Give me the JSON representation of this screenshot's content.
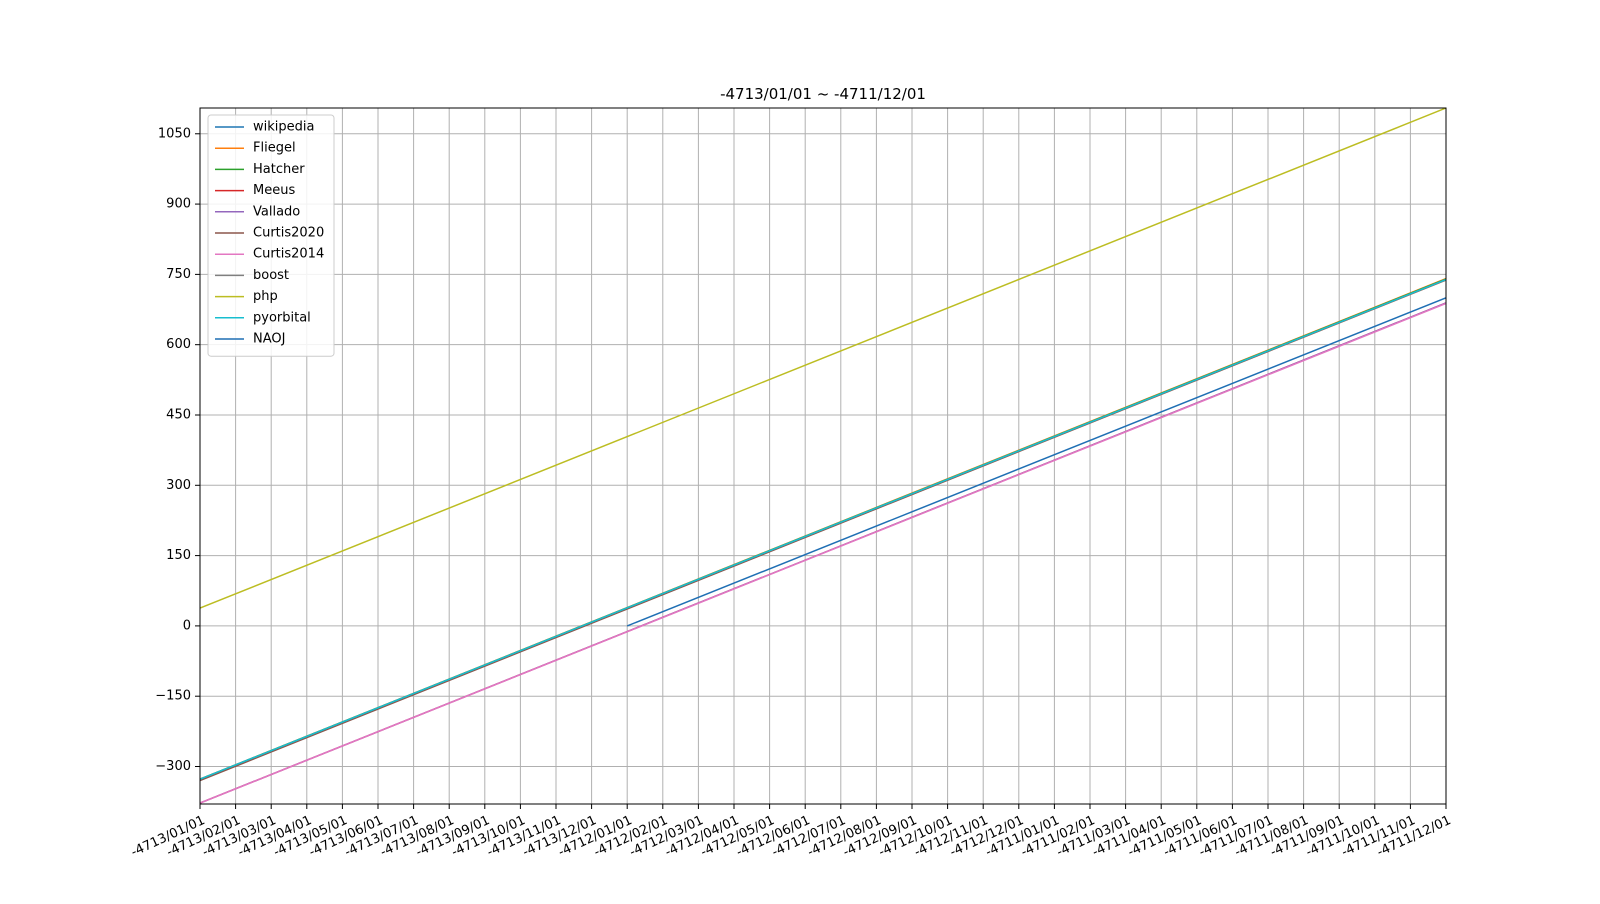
{
  "chart_data": {
    "type": "line",
    "title": "-4713/01/01 ~ -4711/12/01",
    "xlabel": "",
    "ylabel": "",
    "x_ticks": [
      "-4713/01/01",
      "-4713/02/01",
      "-4713/03/01",
      "-4713/04/01",
      "-4713/05/01",
      "-4713/06/01",
      "-4713/07/01",
      "-4713/08/01",
      "-4713/09/01",
      "-4713/10/01",
      "-4713/11/01",
      "-4713/12/01",
      "-4712/01/01",
      "-4712/02/01",
      "-4712/03/01",
      "-4712/04/01",
      "-4712/05/01",
      "-4712/06/01",
      "-4712/07/01",
      "-4712/08/01",
      "-4712/09/01",
      "-4712/10/01",
      "-4712/11/01",
      "-4712/12/01",
      "-4711/01/01",
      "-4711/02/01",
      "-4711/03/01",
      "-4711/04/01",
      "-4711/05/01",
      "-4711/06/01",
      "-4711/07/01",
      "-4711/08/01",
      "-4711/09/01",
      "-4711/10/01",
      "-4711/11/01",
      "-4711/12/01"
    ],
    "y_ticks": [
      "−300",
      "−150",
      "0",
      "150",
      "300",
      "450",
      "600",
      "750",
      "900",
      "1050"
    ],
    "y_tick_values": [
      -300,
      -150,
      0,
      150,
      300,
      450,
      600,
      750,
      900,
      1050
    ],
    "ylim": [
      -380,
      1105
    ],
    "grid": true,
    "legend_position": "upper-left",
    "series": [
      {
        "name": "wikipedia",
        "color": "#1f77b4",
        "x": [
          "-4713/01/01",
          "-4711/12/01"
        ],
        "y": [
          -327,
          739
        ]
      },
      {
        "name": "Fliegel",
        "color": "#ff7f0e",
        "x": [
          "-4713/01/01",
          "-4711/12/01"
        ],
        "y": [
          -327,
          741
        ]
      },
      {
        "name": "Hatcher",
        "color": "#2ca02c",
        "x": [
          "-4713/01/01",
          "-4711/12/01"
        ],
        "y": [
          -327,
          740
        ]
      },
      {
        "name": "Meeus",
        "color": "#d62728",
        "x": [
          "-4713/01/01",
          "-4711/12/01"
        ],
        "y": [
          -378,
          689
        ]
      },
      {
        "name": "Vallado",
        "color": "#9467bd",
        "x": [
          "-4713/01/01",
          "-4711/12/01"
        ],
        "y": [
          -378,
          689
        ]
      },
      {
        "name": "Curtis2020",
        "color": "#8c564b",
        "x": [
          "-4713/01/01",
          "-4711/12/01"
        ],
        "y": [
          -330,
          738
        ]
      },
      {
        "name": "Curtis2014",
        "color": "#e377c2",
        "x": [
          "-4713/01/01",
          "-4711/12/01"
        ],
        "y": [
          -378,
          688
        ]
      },
      {
        "name": "boost",
        "color": "#7f7f7f",
        "x": [
          "-4713/01/01",
          "-4711/12/01"
        ],
        "y": [
          -327,
          739
        ]
      },
      {
        "name": "php",
        "color": "#bcbd22",
        "x": [
          "-4713/01/01",
          "-4711/12/01"
        ],
        "y": [
          38,
          1105
        ]
      },
      {
        "name": "pyorbital",
        "color": "#17becf",
        "x": [
          "-4713/01/01",
          "-4711/12/01"
        ],
        "y": [
          -327,
          739
        ]
      },
      {
        "name": "NAOJ",
        "color": "#1f6fb4",
        "x": [
          "-4712/01/01",
          "-4711/12/01"
        ],
        "y": [
          0,
          700
        ]
      }
    ]
  }
}
